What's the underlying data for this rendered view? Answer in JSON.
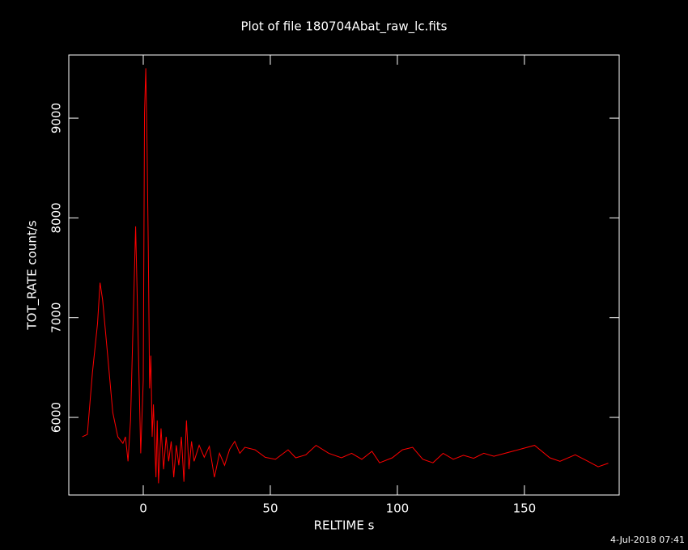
{
  "chart_data": {
    "type": "line",
    "title": "Plot of file 180704Abat_raw_lc.fits",
    "x_label": "RELTIME  s",
    "y_label": "TOT_RATE  count/s",
    "footer": "4-Jul-2018 07:41",
    "color": "#ff0000",
    "x": [
      -24,
      -22,
      -20,
      -18,
      -17,
      -16,
      -14,
      -12,
      -10,
      -8,
      -7,
      -6,
      -5,
      -4,
      -3,
      -2,
      -1,
      0,
      0.5,
      1,
      1.5,
      2,
      2.5,
      3,
      3.5,
      4,
      5,
      5.5,
      6,
      7,
      8,
      9,
      10,
      11,
      12,
      13,
      14,
      15,
      16,
      17,
      18,
      19,
      20,
      22,
      24,
      26,
      28,
      30,
      32,
      34,
      36,
      38,
      40,
      44,
      48,
      52,
      57,
      60,
      64,
      68,
      73,
      78,
      82,
      86,
      90,
      93,
      98,
      102,
      106,
      110,
      114,
      118,
      122,
      126,
      130,
      134,
      138,
      154,
      160,
      164,
      170,
      175,
      179,
      183
    ],
    "values": [
      5805,
      5830,
      6450,
      6940,
      7350,
      7180,
      6620,
      6050,
      5805,
      5740,
      5805,
      5560,
      5970,
      6940,
      7915,
      6780,
      5640,
      6370,
      9050,
      9500,
      8720,
      7670,
      6290,
      6620,
      5805,
      6130,
      5400,
      5970,
      5340,
      5890,
      5480,
      5805,
      5560,
      5760,
      5400,
      5720,
      5520,
      5805,
      5355,
      5970,
      5480,
      5760,
      5560,
      5720,
      5600,
      5710,
      5400,
      5640,
      5520,
      5680,
      5760,
      5640,
      5700,
      5675,
      5600,
      5580,
      5675,
      5595,
      5625,
      5720,
      5640,
      5595,
      5640,
      5580,
      5660,
      5545,
      5595,
      5675,
      5700,
      5580,
      5545,
      5640,
      5580,
      5620,
      5590,
      5640,
      5610,
      5720,
      5595,
      5560,
      5625,
      5560,
      5505,
      5540
    ],
    "xlim": [
      -29.3,
      187.3
    ],
    "ylim": [
      5222,
      9633
    ],
    "xticks": [
      0,
      50,
      100,
      150
    ],
    "yticks": [
      6000,
      7000,
      8000,
      9000
    ]
  }
}
